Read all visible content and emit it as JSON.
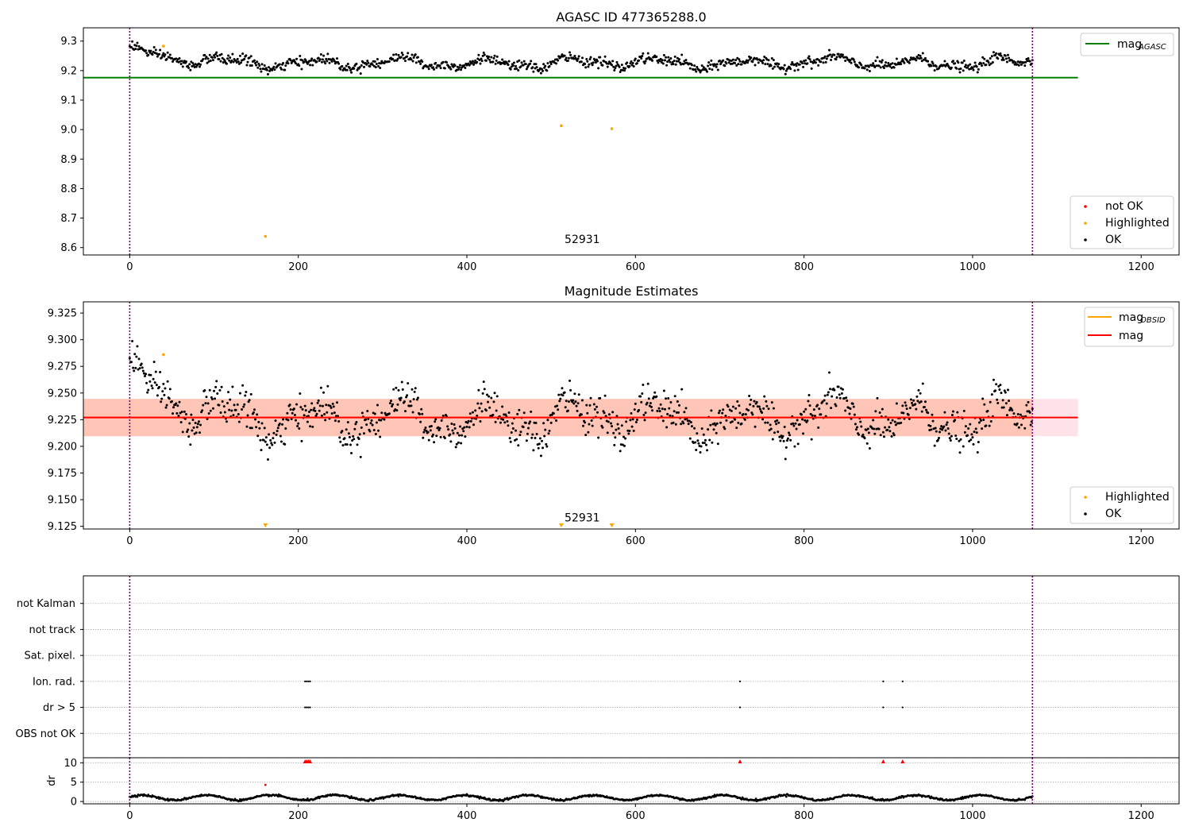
{
  "figure": {
    "colors": {
      "ok": "#000000",
      "highlighted": "#ffa500",
      "not_ok": "#ff0000",
      "agasc": "#008000",
      "mag": "#ff0000",
      "band": "#ffa07a",
      "band_wide": "#ffc0cb",
      "vline": "#800080"
    }
  },
  "chart_data": [
    {
      "id": "agasc",
      "type": "scatter",
      "title": "AGASC ID 477365288.0",
      "xlim": [
        -55,
        1245
      ],
      "ylim": [
        8.575,
        9.345
      ],
      "xticks": [
        0,
        200,
        400,
        600,
        800,
        1000,
        1200
      ],
      "yticks": [
        8.6,
        8.7,
        8.8,
        8.9,
        9.0,
        9.1,
        9.2,
        9.3
      ],
      "ytick_labels": [
        "8.6",
        "8.7",
        "8.8",
        "8.9",
        "9.0",
        "9.1",
        "9.2",
        "9.3"
      ],
      "grid": false,
      "n_points": 1072,
      "obs_boundaries": [
        0,
        1071
      ],
      "obs_annotations": [
        {
          "x": 535,
          "y": 8.615,
          "label": "52931"
        }
      ],
      "lines": [
        {
          "name": "mag",
          "name_sub": "AGASC",
          "y": 9.176,
          "x": [
            -55,
            1125
          ],
          "color": "#008000"
        }
      ],
      "highlighted": [
        {
          "x": 40,
          "y": 9.283
        },
        {
          "x": 161,
          "y": 8.638
        },
        {
          "x": 512,
          "y": 9.013
        },
        {
          "x": 572,
          "y": 9.003
        }
      ],
      "not_ok": [],
      "series": [
        {
          "name": "not OK",
          "color": "#ff0000"
        },
        {
          "name": "Highlighted",
          "color": "#ffa500"
        },
        {
          "name": "OK",
          "color": "#000000"
        }
      ],
      "legend": {
        "lines": "top-right",
        "markers": "bottom-right"
      }
    },
    {
      "id": "estimates",
      "type": "scatter",
      "title": "Magnitude Estimates",
      "xlim": [
        -55,
        1245
      ],
      "ylim": [
        9.1225,
        9.3355
      ],
      "xticks": [
        0,
        200,
        400,
        600,
        800,
        1000,
        1200
      ],
      "yticks": [
        9.125,
        9.15,
        9.175,
        9.2,
        9.225,
        9.25,
        9.275,
        9.3,
        9.325
      ],
      "ytick_labels": [
        "9.125",
        "9.150",
        "9.175",
        "9.200",
        "9.225",
        "9.250",
        "9.275",
        "9.300",
        "9.325"
      ],
      "grid": false,
      "n_points": 1072,
      "obs_boundaries": [
        0,
        1071
      ],
      "obs_annotations": [
        {
          "x": 535,
          "y": 9.128,
          "label": "52931"
        }
      ],
      "bands": [
        {
          "y0": 9.2095,
          "y1": 9.2445,
          "x": [
            -55,
            1125
          ],
          "color": "#ffc0cb",
          "opacity": 0.45
        },
        {
          "y0": 9.2095,
          "y1": 9.2445,
          "x": [
            -55,
            1071
          ],
          "color": "#ffa07a",
          "opacity": 0.45
        }
      ],
      "lines": [
        {
          "name": "mag",
          "name_sub": "OBSID",
          "y": 9.227,
          "x": [
            -55,
            1071
          ],
          "color": "#ffa500"
        },
        {
          "name": "mag",
          "y": 9.227,
          "x": [
            -55,
            1125
          ],
          "color": "#ff0000"
        }
      ],
      "highlighted": [
        {
          "x": 40,
          "y": 9.286
        }
      ],
      "clipped_low": [
        161,
        512,
        572
      ],
      "series": [
        {
          "name": "Highlighted",
          "color": "#ffa500"
        },
        {
          "name": "OK",
          "color": "#000000"
        }
      ],
      "legend": {
        "lines": "top-right",
        "markers": "bottom-right"
      }
    },
    {
      "id": "flags",
      "type": "scatter",
      "xlim": [
        -55,
        1245
      ],
      "xticks": [
        0,
        200,
        400,
        600,
        800,
        1000,
        1200
      ],
      "categories": [
        "OBS not OK",
        "dr > 5",
        "Ion. rad.",
        "Sat. pixel.",
        "not track",
        "not Kalman"
      ],
      "grid": true,
      "obs_boundaries": [
        0,
        1071
      ],
      "flag_points": [
        {
          "category": "dr > 5",
          "x": [
            208,
            210,
            212,
            214,
            724,
            894,
            917
          ]
        },
        {
          "category": "Ion. rad.",
          "x": [
            208,
            210,
            212,
            214,
            724,
            894,
            917
          ]
        }
      ]
    },
    {
      "id": "dr",
      "type": "scatter",
      "ylabel": "dr",
      "xlim": [
        -55,
        1245
      ],
      "ylim": [
        -0.6,
        11.3
      ],
      "xticks": [
        0,
        200,
        400,
        600,
        800,
        1000,
        1200
      ],
      "yticks": [
        0,
        5,
        10
      ],
      "ytick_labels": [
        "0",
        "5",
        "10"
      ],
      "grid": true,
      "n_points": 1072,
      "obs_boundaries": [
        0,
        1071
      ],
      "clipped_high": [
        208,
        210,
        212,
        214,
        724,
        894,
        917
      ],
      "highlighted": [
        {
          "x": 161,
          "y": 4.3,
          "color": "#ff0000"
        }
      ]
    }
  ]
}
